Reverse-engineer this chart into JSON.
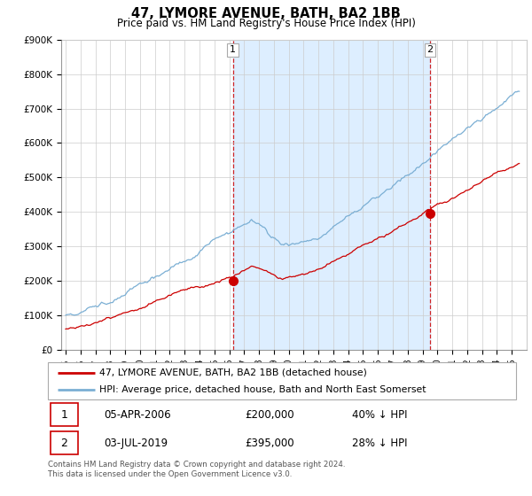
{
  "title": "47, LYMORE AVENUE, BATH, BA2 1BB",
  "subtitle": "Price paid vs. HM Land Registry's House Price Index (HPI)",
  "ylim": [
    0,
    900000
  ],
  "yticks": [
    0,
    100000,
    200000,
    300000,
    400000,
    500000,
    600000,
    700000,
    800000,
    900000
  ],
  "ytick_labels": [
    "£0",
    "£100K",
    "£200K",
    "£300K",
    "£400K",
    "£500K",
    "£600K",
    "£700K",
    "£800K",
    "£900K"
  ],
  "hpi_color": "#7bafd4",
  "price_color": "#cc0000",
  "shade_color": "#ddeeff",
  "sale1_date": 2006.25,
  "sale1_price": 200000,
  "sale1_label": "1",
  "sale2_date": 2019.5,
  "sale2_price": 395000,
  "sale2_label": "2",
  "legend_line1": "47, LYMORE AVENUE, BATH, BA2 1BB (detached house)",
  "legend_line2": "HPI: Average price, detached house, Bath and North East Somerset",
  "table_row1": [
    "1",
    "05-APR-2006",
    "£200,000",
    "40% ↓ HPI"
  ],
  "table_row2": [
    "2",
    "03-JUL-2019",
    "£395,000",
    "28% ↓ HPI"
  ],
  "footnote": "Contains HM Land Registry data © Crown copyright and database right 2024.\nThis data is licensed under the Open Government Licence v3.0.",
  "background_color": "#ffffff",
  "grid_color": "#cccccc",
  "xlim_start": 1995.0,
  "xlim_end": 2025.5
}
